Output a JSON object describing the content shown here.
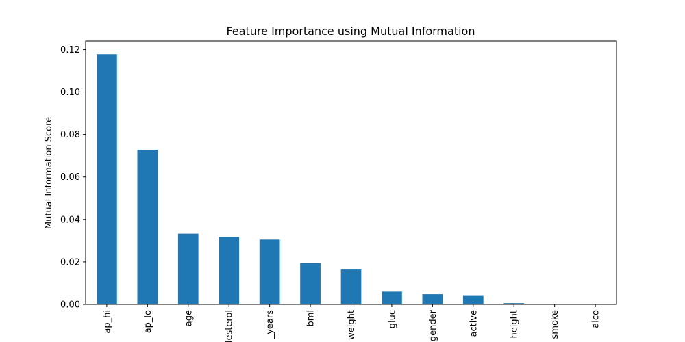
{
  "chart_data": {
    "type": "bar",
    "title": "Feature Importance using Mutual Information",
    "xlabel": "",
    "ylabel": "Mutual Information Score",
    "categories": [
      "ap_hi",
      "ap_lo",
      "age",
      "cholesterol",
      "age_years",
      "bmi",
      "weight",
      "gluc",
      "gender",
      "active",
      "height",
      "smoke",
      "alco"
    ],
    "category_labels_visible": [
      "ap_hi",
      "ap_lo",
      "age",
      "lesterol",
      "_years",
      "bmi",
      "weight",
      "gluc",
      "gender",
      "active",
      "height",
      "smoke",
      "alco"
    ],
    "values": [
      0.1178,
      0.0728,
      0.0333,
      0.0318,
      0.0305,
      0.0195,
      0.0164,
      0.006,
      0.0048,
      0.004,
      0.0006,
      0.0,
      0.0
    ],
    "ylim": [
      0,
      0.124
    ],
    "yticks": [
      0.0,
      0.02,
      0.04,
      0.06,
      0.08,
      0.1,
      0.12
    ],
    "ytick_labels": [
      "0.00",
      "0.02",
      "0.04",
      "0.06",
      "0.08",
      "0.10",
      "0.12"
    ],
    "grid": false,
    "legend": "none",
    "bar_color": "#1f77b4"
  }
}
